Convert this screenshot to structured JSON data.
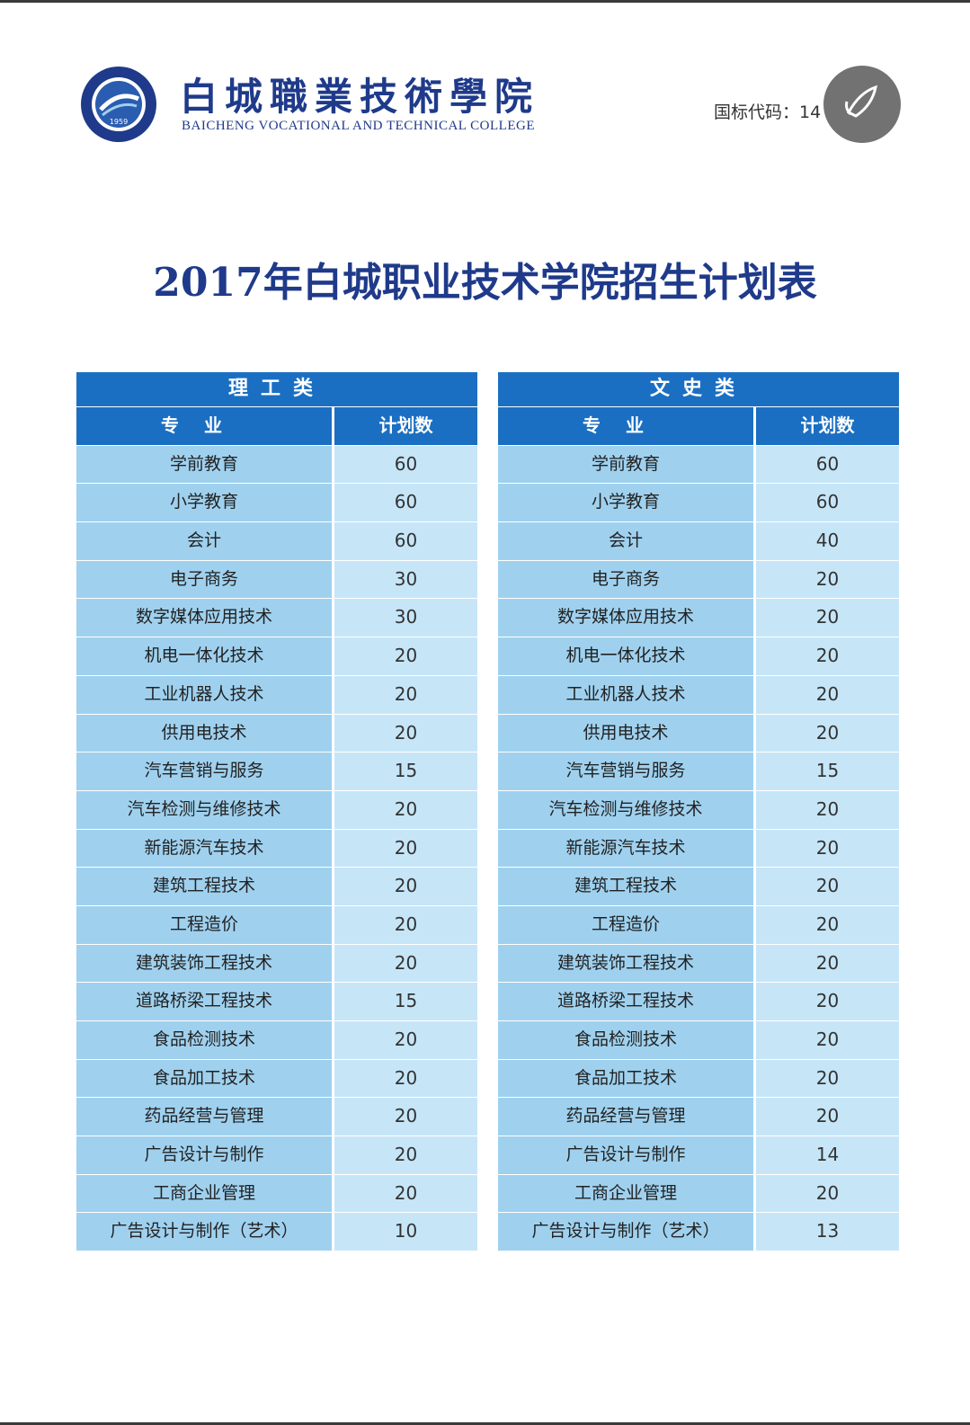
{
  "header": {
    "college_name_cn": "白城職業技術學院",
    "college_name_en": "BAICHENG VOCATIONAL AND TECHNICAL COLLEGE",
    "logo_year": "1959",
    "national_code": "国标代码：14"
  },
  "title": "2017年白城职业技术学院招生计划表",
  "colors": {
    "primary_blue": "#1b6fc2",
    "title_blue": "#1f3a8a",
    "row_dark": "#9fd1ef",
    "row_light": "#c6e6f8"
  },
  "tables": {
    "science": {
      "title": "理工类",
      "col_name": "专业",
      "col_num": "计划数",
      "rows": [
        {
          "major": "学前教育",
          "count": "60"
        },
        {
          "major": "小学教育",
          "count": "60"
        },
        {
          "major": "会计",
          "count": "60"
        },
        {
          "major": "电子商务",
          "count": "30"
        },
        {
          "major": "数字媒体应用技术",
          "count": "30"
        },
        {
          "major": "机电一体化技术",
          "count": "20"
        },
        {
          "major": "工业机器人技术",
          "count": "20"
        },
        {
          "major": "供用电技术",
          "count": "20"
        },
        {
          "major": "汽车营销与服务",
          "count": "15"
        },
        {
          "major": "汽车检测与维修技术",
          "count": "20"
        },
        {
          "major": "新能源汽车技术",
          "count": "20"
        },
        {
          "major": "建筑工程技术",
          "count": "20"
        },
        {
          "major": "工程造价",
          "count": "20"
        },
        {
          "major": "建筑装饰工程技术",
          "count": "20"
        },
        {
          "major": "道路桥梁工程技术",
          "count": "15"
        },
        {
          "major": "食品检测技术",
          "count": "20"
        },
        {
          "major": "食品加工技术",
          "count": "20"
        },
        {
          "major": "药品经营与管理",
          "count": "20"
        },
        {
          "major": "广告设计与制作",
          "count": "20"
        },
        {
          "major": "工商企业管理",
          "count": "20"
        },
        {
          "major": "广告设计与制作（艺术）",
          "count": "10"
        }
      ]
    },
    "humanities": {
      "title": "文史类",
      "col_name": "专业",
      "col_num": "计划数",
      "rows": [
        {
          "major": "学前教育",
          "count": "60"
        },
        {
          "major": "小学教育",
          "count": "60"
        },
        {
          "major": "会计",
          "count": "40"
        },
        {
          "major": "电子商务",
          "count": "20"
        },
        {
          "major": "数字媒体应用技术",
          "count": "20"
        },
        {
          "major": "机电一体化技术",
          "count": "20"
        },
        {
          "major": "工业机器人技术",
          "count": "20"
        },
        {
          "major": "供用电技术",
          "count": "20"
        },
        {
          "major": "汽车营销与服务",
          "count": "15"
        },
        {
          "major": "汽车检测与维修技术",
          "count": "20"
        },
        {
          "major": "新能源汽车技术",
          "count": "20"
        },
        {
          "major": "建筑工程技术",
          "count": "20"
        },
        {
          "major": "工程造价",
          "count": "20"
        },
        {
          "major": "建筑装饰工程技术",
          "count": "20"
        },
        {
          "major": "道路桥梁工程技术",
          "count": "20"
        },
        {
          "major": "食品检测技术",
          "count": "20"
        },
        {
          "major": "食品加工技术",
          "count": "20"
        },
        {
          "major": "药品经营与管理",
          "count": "20"
        },
        {
          "major": "广告设计与制作",
          "count": "14"
        },
        {
          "major": "工商企业管理",
          "count": "20"
        },
        {
          "major": "广告设计与制作（艺术）",
          "count": "13"
        }
      ]
    }
  }
}
